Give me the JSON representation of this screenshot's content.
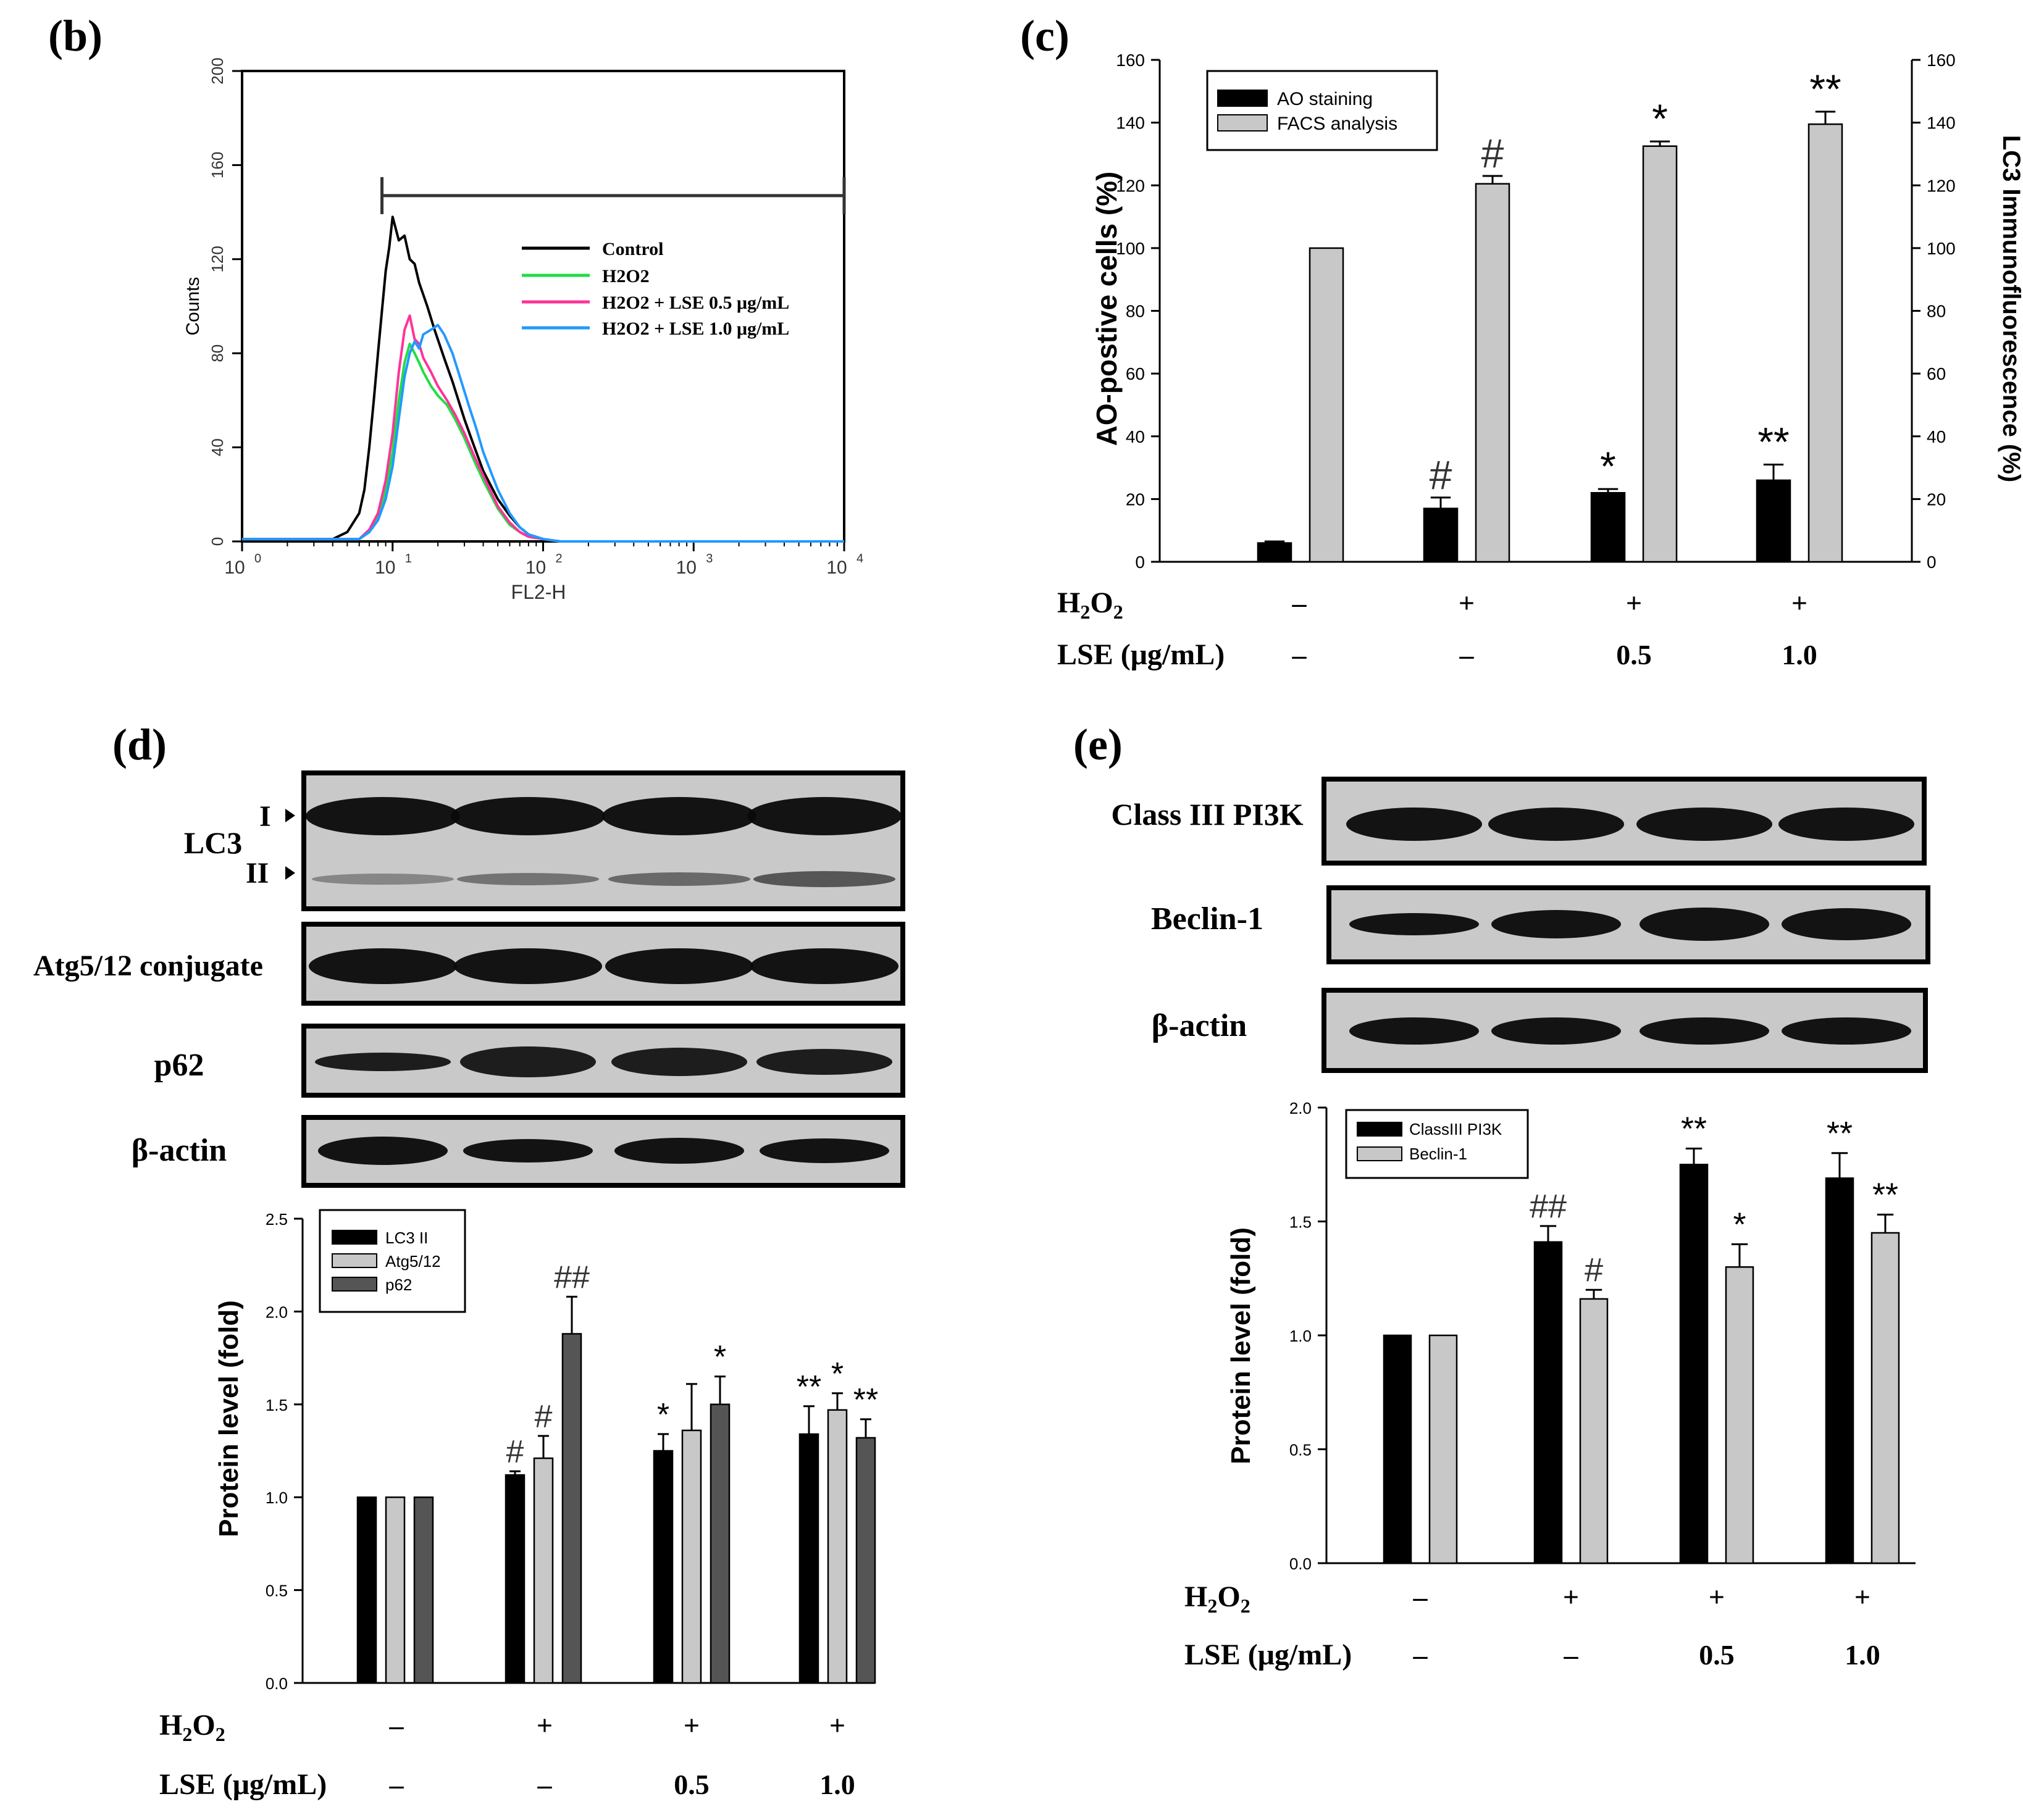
{
  "panels": {
    "b": "(b)",
    "c": "(c)",
    "d": "(d)",
    "e": "(e)"
  },
  "treatment": {
    "h2o2_label": "H2O2",
    "lse_label": "LSE (μg/mL)",
    "h2o2": [
      "–",
      "+",
      "+",
      "+"
    ],
    "lse": [
      "–",
      "–",
      "0.5",
      "1.0"
    ]
  },
  "blots_d": {
    "lc3": "LC3",
    "lc3_i": "I",
    "lc3_ii": "II",
    "atg": "Atg5/12 conjugate",
    "p62": "p62",
    "actin": "β-actin"
  },
  "blots_e": {
    "pi3k": "Class III PI3K",
    "beclin": "Beclin-1",
    "actin": "β-actin"
  },
  "colors": {
    "black": "#000000",
    "light_gray": "#c8c8c8",
    "dark_gray": "#555555",
    "flow_control": "#000000",
    "flow_h2o2": "#22dd44",
    "flow_lse05": "#ff3399",
    "flow_lse10": "#2299ff"
  },
  "chart_data": [
    {
      "panel": "b",
      "type": "line",
      "title": "",
      "xlabel": "FL2-H",
      "ylabel": "Counts",
      "xscale": "log",
      "xlim": [
        1,
        10000
      ],
      "ylim": [
        0,
        200
      ],
      "xticks": [
        1,
        10,
        100,
        1000,
        10000
      ],
      "xtick_labels": [
        "10",
        "10",
        "10",
        "10",
        "10"
      ],
      "xtick_exps": [
        "0",
        "1",
        "2",
        "3",
        "4"
      ],
      "yticks": [
        0,
        40,
        80,
        120,
        160,
        200
      ],
      "gate": {
        "from": 8.5,
        "to": 10000,
        "level": 147
      },
      "legend_position": "top-right",
      "series": [
        {
          "name": "Control",
          "color_key": "flow_control",
          "x": [
            1,
            4,
            5,
            6,
            6.5,
            7,
            7.5,
            8,
            8.5,
            9,
            9.5,
            10,
            11,
            12,
            13,
            14,
            15,
            17,
            19,
            22,
            25,
            30,
            35,
            40,
            50,
            60,
            70,
            80,
            100,
            130,
            10000
          ],
          "y": [
            1,
            1,
            4,
            12,
            22,
            40,
            60,
            80,
            98,
            115,
            125,
            138,
            128,
            130,
            120,
            118,
            110,
            100,
            90,
            78,
            68,
            52,
            40,
            30,
            18,
            11,
            6,
            3,
            1,
            0,
            0
          ]
        },
        {
          "name": "H2O2",
          "color_key": "flow_h2o2",
          "x": [
            1,
            6,
            7,
            8,
            9,
            10,
            11,
            12,
            13,
            14,
            15,
            16,
            18,
            20,
            23,
            26,
            30,
            35,
            40,
            50,
            60,
            70,
            80,
            100,
            130,
            10000
          ],
          "y": [
            1,
            1,
            4,
            10,
            22,
            38,
            60,
            76,
            84,
            80,
            76,
            72,
            66,
            62,
            58,
            52,
            44,
            34,
            26,
            14,
            7,
            4,
            2,
            1,
            0,
            0
          ]
        },
        {
          "name": "H2O2 + LSE 0.5 μg/mL",
          "color_key": "flow_lse05",
          "x": [
            1,
            6,
            7,
            8,
            9,
            10,
            11,
            12,
            13,
            14,
            15,
            16,
            18,
            20,
            23,
            26,
            30,
            35,
            40,
            50,
            60,
            70,
            80,
            100,
            130,
            10000
          ],
          "y": [
            1,
            1,
            5,
            12,
            26,
            46,
            72,
            90,
            96,
            86,
            84,
            78,
            72,
            66,
            60,
            54,
            46,
            36,
            28,
            15,
            8,
            4,
            2,
            1,
            0,
            0
          ]
        },
        {
          "name": "H2O2 + LSE 1.0 μg/mL",
          "color_key": "flow_lse10",
          "x": [
            1,
            6,
            7,
            8,
            9,
            10,
            11,
            12,
            13,
            14,
            15,
            16,
            18,
            20,
            22,
            25,
            28,
            32,
            36,
            40,
            50,
            60,
            70,
            80,
            100,
            130,
            10000
          ],
          "y": [
            1,
            1,
            4,
            9,
            18,
            32,
            52,
            70,
            80,
            85,
            82,
            88,
            90,
            92,
            88,
            80,
            70,
            58,
            48,
            38,
            22,
            12,
            6,
            3,
            1,
            0,
            0
          ]
        }
      ]
    },
    {
      "panel": "c",
      "type": "bar",
      "title": "",
      "ylabel": "AO-postive cells (%)",
      "y2label": "LC3 Immunofluorescence (%)",
      "ylim": [
        0,
        160
      ],
      "yticks": [
        0,
        20,
        40,
        60,
        80,
        100,
        120,
        140,
        160
      ],
      "legend_position": "top-left",
      "categories": [
        "1",
        "2",
        "3",
        "4"
      ],
      "series": [
        {
          "name": "AO staining",
          "color_key": "black",
          "values": [
            6,
            17,
            22,
            26
          ],
          "errors": [
            0.5,
            3.5,
            1.2,
            5
          ],
          "marks": [
            "",
            "#",
            "*",
            "**"
          ]
        },
        {
          "name": "FACS analysis",
          "color_key": "light_gray",
          "values": [
            100,
            120.5,
            132.5,
            139.5
          ],
          "errors": [
            0,
            2.5,
            1.5,
            4
          ],
          "marks": [
            "",
            "#",
            "*",
            "**"
          ]
        }
      ]
    },
    {
      "panel": "d",
      "type": "bar",
      "title": "",
      "ylabel": "Protein level (fold)",
      "ylim": [
        0,
        2.5
      ],
      "yticks": [
        0.0,
        0.5,
        1.0,
        1.5,
        2.0,
        2.5
      ],
      "ytick_labels": [
        "0.0",
        "0.5",
        "1.0",
        "1.5",
        "2.0",
        "2.5"
      ],
      "legend_position": "top-left",
      "categories": [
        "1",
        "2",
        "3",
        "4"
      ],
      "series": [
        {
          "name": "LC3 II",
          "color_key": "black",
          "values": [
            1.0,
            1.12,
            1.25,
            1.34
          ],
          "errors": [
            0,
            0.02,
            0.09,
            0.15
          ],
          "marks": [
            "",
            "#",
            "*",
            "**"
          ]
        },
        {
          "name": "Atg5/12",
          "color_key": "light_gray",
          "values": [
            1.0,
            1.21,
            1.36,
            1.47
          ],
          "errors": [
            0,
            0.12,
            0.25,
            0.09
          ],
          "marks": [
            "",
            "#",
            "",
            "*"
          ]
        },
        {
          "name": "p62",
          "color_key": "dark_gray",
          "values": [
            1.0,
            1.88,
            1.5,
            1.32
          ],
          "errors": [
            0,
            0.2,
            0.15,
            0.1
          ],
          "marks": [
            "",
            "##",
            "*",
            "**"
          ]
        }
      ]
    },
    {
      "panel": "e",
      "type": "bar",
      "title": "",
      "ylabel": "Protein level (fold)",
      "ylim": [
        0,
        2.0
      ],
      "yticks": [
        0.0,
        0.5,
        1.0,
        1.5,
        2.0
      ],
      "ytick_labels": [
        "0.0",
        "0.5",
        "1.0",
        "1.5",
        "2.0"
      ],
      "legend_position": "top-left",
      "categories": [
        "1",
        "2",
        "3",
        "4"
      ],
      "series": [
        {
          "name": "ClassIII PI3K",
          "color_key": "black",
          "values": [
            1.0,
            1.41,
            1.75,
            1.69
          ],
          "errors": [
            0,
            0.07,
            0.07,
            0.11
          ],
          "marks": [
            "",
            "##",
            "**",
            "**"
          ]
        },
        {
          "name": "Beclin-1",
          "color_key": "light_gray",
          "values": [
            1.0,
            1.16,
            1.3,
            1.45
          ],
          "errors": [
            0,
            0.04,
            0.1,
            0.08
          ],
          "marks": [
            "",
            "#",
            "*",
            "**"
          ]
        }
      ]
    }
  ]
}
